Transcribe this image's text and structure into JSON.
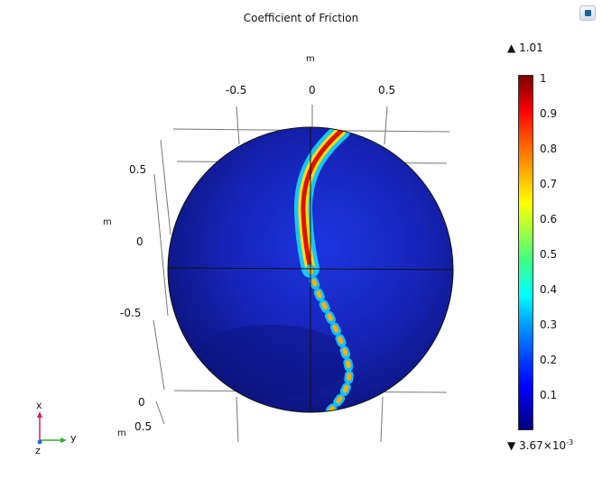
{
  "plot": {
    "title": "Coefficient of Friction",
    "unit_top": "m",
    "unit_left": "m",
    "unit_bottom": "m",
    "top_ticks": [
      "-0.5",
      "0",
      "0.5"
    ],
    "left_ticks": [
      "0.5",
      "0",
      "-0.5"
    ],
    "bottom_ticks": [
      "0",
      "0.5"
    ]
  },
  "colorbar": {
    "max_marker": "1.01",
    "min_marker_prefix": "3.67×10",
    "min_marker_exp": "-3",
    "ticks": [
      "1",
      "0.9",
      "0.8",
      "0.7",
      "0.6",
      "0.5",
      "0.4",
      "0.3",
      "0.2",
      "0.1"
    ]
  },
  "axes_triad": {
    "x": "x",
    "y": "y",
    "z": "z"
  },
  "colors": {
    "background": "#ffffff",
    "sphere_base": "#1420a8",
    "triad_x": "#cc2266",
    "triad_y": "#33aa33",
    "triad_z": "#3366cc"
  },
  "toolbar": {
    "view_button_icon": "view-cube-icon"
  }
}
